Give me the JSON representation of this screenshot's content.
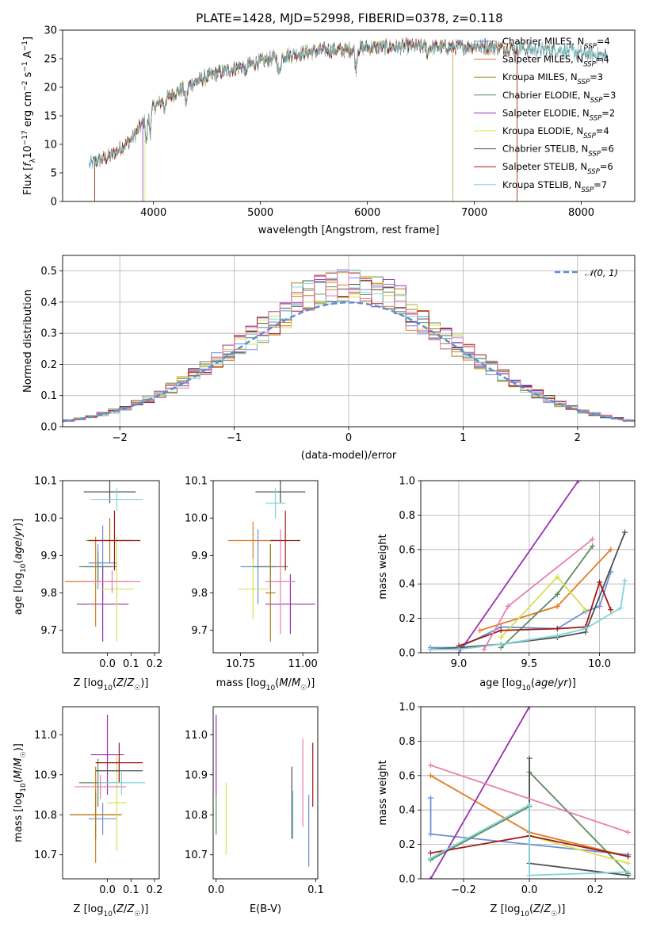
{
  "figure": {
    "title": "PLATE=1428, MJD=52998, FIBERID=0378, z=0.118",
    "colors": [
      "#6b8ed6",
      "#e07b20",
      "#b07c20",
      "#5c8a5c",
      "#9a30b0",
      "#d8e050",
      "#505050",
      "#a01818",
      "#80d4d8",
      "#e87fb0"
    ]
  },
  "chart_data": [
    {
      "id": "spectrum",
      "type": "line",
      "title": "PLATE=1428, MJD=52998, FIBERID=0378, z=0.118",
      "xlabel": "wavelength [Angstrom, rest frame]",
      "ylabel": "Flux [fλ10⁻¹⁷ erg cm⁻² s⁻¹ A⁻¹]",
      "xlim": [
        3150,
        8500
      ],
      "ylim": [
        0,
        30
      ],
      "xticks": [
        4000,
        5000,
        6000,
        7000,
        8000
      ],
      "yticks": [
        0,
        5,
        10,
        15,
        20,
        25,
        30
      ],
      "legend_position": "upper-right",
      "continuum": {
        "x": [
          3400,
          3600,
          3800,
          4000,
          4200,
          4400,
          4600,
          4800,
          5000,
          5200,
          5400,
          5600,
          5800,
          6000,
          6200,
          6400,
          6600,
          6800,
          7000,
          7200,
          7400,
          7600,
          7800,
          8000,
          8200
        ],
        "y": [
          6.5,
          8.0,
          11.0,
          16.5,
          19.0,
          21.0,
          22.5,
          23.5,
          24.5,
          25.5,
          26.0,
          26.5,
          26.5,
          27.0,
          27.0,
          27.2,
          27.0,
          27.0,
          27.2,
          27.0,
          26.8,
          26.5,
          26.5,
          26.0,
          25.5
        ]
      },
      "series": [
        {
          "name": "Chabrier MILES, N_SSP=4",
          "color": "#6b8ed6",
          "marker": "+",
          "range": [
            3400,
            7400
          ]
        },
        {
          "name": "Salpeter MILES, N_SSP=4",
          "color": "#e07b20",
          "range": [
            3450,
            7400
          ]
        },
        {
          "name": "Kroupa MILES, N_SSP=3",
          "color": "#b07c20",
          "range": [
            3450,
            7400
          ]
        },
        {
          "name": "Chabrier ELODIE, N_SSP=3",
          "color": "#5c8a5c",
          "range": [
            3900,
            6800
          ]
        },
        {
          "name": "Salpeter ELODIE, N_SSP=2",
          "color": "#9a30b0",
          "range": [
            3900,
            6800
          ]
        },
        {
          "name": "Kroupa ELODIE, N_SSP=4",
          "color": "#d8e050",
          "range": [
            3920,
            6800
          ]
        },
        {
          "name": "Chabrier STELIB, N_SSP=6",
          "color": "#505050",
          "range": [
            3400,
            8250
          ]
        },
        {
          "name": "Salpeter STELIB, N_SSP=6",
          "color": "#a01818",
          "range": [
            3450,
            7400
          ]
        },
        {
          "name": "Kroupa STELIB, N_SSP=7",
          "color": "#80d4d8",
          "range": [
            3400,
            8250
          ]
        }
      ],
      "legend_labels": [
        {
          "prefix": "Chabrier MILES, N",
          "sub": "SSP",
          "suffix": "=4"
        },
        {
          "prefix": "Salpeter MILES, N",
          "sub": "SSP",
          "suffix": "=4"
        },
        {
          "prefix": "Kroupa MILES, N",
          "sub": "SSP",
          "suffix": "=3"
        },
        {
          "prefix": "Chabrier ELODIE, N",
          "sub": "SSP",
          "suffix": "=3"
        },
        {
          "prefix": "Salpeter ELODIE, N",
          "sub": "SSP",
          "suffix": "=2"
        },
        {
          "prefix": "Kroupa ELODIE, N",
          "sub": "SSP",
          "suffix": "=4"
        },
        {
          "prefix": "Chabrier STELIB, N",
          "sub": "SSP",
          "suffix": "=6"
        },
        {
          "prefix": "Salpeter STELIB, N",
          "sub": "SSP",
          "suffix": "=6"
        },
        {
          "prefix": "Kroupa STELIB, N",
          "sub": "SSP",
          "suffix": "=7"
        }
      ]
    },
    {
      "id": "residuals",
      "type": "histogram",
      "xlabel": "(data-model)/error",
      "ylabel": "Normed distribution",
      "xlim": [
        -2.5,
        2.5
      ],
      "ylim": [
        0,
        0.55
      ],
      "xticks": [
        -2,
        -1,
        0,
        1,
        2
      ],
      "yticks": [
        0.0,
        0.1,
        0.2,
        0.3,
        0.4,
        0.5
      ],
      "bin_width": 0.1,
      "grid": true,
      "legend": "𝒩(0, 1)",
      "legend_position": "upper-right",
      "reference_curve": "standard normal N(0,1)"
    },
    {
      "id": "age-vs-Z",
      "type": "errorbar",
      "xlabel": "Z [log10(Z/Z☉)]",
      "ylabel": "age  [log10(age/yr)]",
      "xlim": [
        -0.19,
        0.22
      ],
      "ylim": [
        9.64,
        10.1
      ],
      "xticks": [
        0.0,
        0.1,
        0.2
      ],
      "yticks": [
        9.7,
        9.8,
        9.9,
        10.0,
        10.1
      ],
      "points": [
        {
          "x": -0.02,
          "y": 9.88,
          "xerr": 0.06,
          "yerr": 0.1,
          "color": "#6b8ed6"
        },
        {
          "x": -0.04,
          "y": 9.87,
          "xerr": 0.06,
          "yerr": 0.06,
          "color": "#6b8ed6"
        },
        {
          "x": -0.05,
          "y": 9.83,
          "xerr": 0.13,
          "yerr": 0.12,
          "color": "#e07b20"
        },
        {
          "x": 0.01,
          "y": 9.94,
          "xerr": 0.1,
          "yerr": 0.06,
          "color": "#b07c20"
        },
        {
          "x": -0.04,
          "y": 9.87,
          "xerr": 0.08,
          "yerr": 0.04,
          "color": "#5c8a5c"
        },
        {
          "x": -0.02,
          "y": 9.77,
          "xerr": 0.11,
          "yerr": 0.1,
          "color": "#9a30b0"
        },
        {
          "x": 0.04,
          "y": 9.81,
          "xerr": 0.07,
          "yerr": 0.14,
          "color": "#d8e050"
        },
        {
          "x": 0.01,
          "y": 10.07,
          "xerr": 0.11,
          "yerr": 0.03,
          "color": "#505050"
        },
        {
          "x": 0.03,
          "y": 9.94,
          "xerr": 0.11,
          "yerr": 0.08,
          "color": "#a01818"
        },
        {
          "x": 0.04,
          "y": 10.05,
          "xerr": 0.11,
          "yerr": 0.03,
          "color": "#80d4d8"
        },
        {
          "x": 0.02,
          "y": 9.83,
          "xerr": 0.12,
          "yerr": 0.03,
          "color": "#e87fb0"
        }
      ]
    },
    {
      "id": "age-vs-mass",
      "type": "errorbar",
      "xlabel": "mass [log10(M/M☉)]",
      "ylabel": "",
      "xlim": [
        10.64,
        11.06
      ],
      "ylim": [
        9.64,
        10.1
      ],
      "xticks": [
        10.75,
        11.0
      ],
      "yticks": [
        9.7,
        9.8,
        9.9,
        10.0,
        10.1
      ],
      "points": [
        {
          "x": 10.8,
          "y": 9.94,
          "xerr": 0.1,
          "yerr": 0.05,
          "color": "#e07b20"
        },
        {
          "x": 10.82,
          "y": 9.87,
          "xerr": 0.07,
          "yerr": 0.1,
          "color": "#6b8ed6"
        },
        {
          "x": 10.8,
          "y": 9.81,
          "xerr": 0.06,
          "yerr": 0.08,
          "color": "#d8e050"
        },
        {
          "x": 10.87,
          "y": 9.87,
          "xerr": 0.07,
          "yerr": 0.06,
          "color": "#5c8a5c"
        },
        {
          "x": 10.91,
          "y": 10.07,
          "xerr": 0.1,
          "yerr": 0.03,
          "color": "#505050"
        },
        {
          "x": 10.89,
          "y": 10.04,
          "xerr": 0.04,
          "yerr": 0.04,
          "color": "#80d4d8"
        },
        {
          "x": 10.95,
          "y": 9.77,
          "xerr": 0.1,
          "yerr": 0.08,
          "color": "#9a30b0"
        },
        {
          "x": 10.91,
          "y": 9.83,
          "xerr": 0.06,
          "yerr": 0.14,
          "color": "#e87fb0"
        },
        {
          "x": 10.93,
          "y": 9.94,
          "xerr": 0.06,
          "yerr": 0.08,
          "color": "#a01818"
        },
        {
          "x": 10.87,
          "y": 9.8,
          "xerr": 0.02,
          "yerr": 0.13,
          "color": "#b07c20"
        }
      ]
    },
    {
      "id": "weight-vs-age",
      "type": "line",
      "xlabel": "age  [log10(age/yr)]",
      "ylabel": "mass weight",
      "xlim": [
        8.73,
        10.25
      ],
      "ylim": [
        0,
        1
      ],
      "xticks": [
        9.0,
        9.5,
        10.0
      ],
      "yticks": [
        0.0,
        0.2,
        0.4,
        0.6,
        0.8,
        1.0
      ],
      "grid": true,
      "series": [
        {
          "color": "#6b8ed6",
          "x": [
            8.8,
            9.0,
            9.3,
            9.7,
            9.9,
            10.0,
            10.08
          ],
          "y": [
            0.03,
            0.03,
            0.15,
            0.14,
            0.24,
            0.27,
            0.47
          ]
        },
        {
          "color": "#e07b20",
          "x": [
            9.15,
            9.7,
            10.08
          ],
          "y": [
            0.13,
            0.27,
            0.6
          ]
        },
        {
          "color": "#5c8a5c",
          "x": [
            9.3,
            9.7,
            9.95
          ],
          "y": [
            0.03,
            0.34,
            0.62
          ]
        },
        {
          "color": "#9a30b0",
          "x": [
            9.0,
            9.85
          ],
          "y": [
            0.0,
            1.0
          ]
        },
        {
          "color": "#d8e050",
          "x": [
            9.3,
            9.7,
            9.9
          ],
          "y": [
            0.09,
            0.44,
            0.25
          ]
        },
        {
          "color": "#505050",
          "x": [
            8.8,
            9.0,
            9.3,
            9.7,
            9.9,
            10.18
          ],
          "y": [
            0.02,
            0.03,
            0.05,
            0.09,
            0.12,
            0.7
          ]
        },
        {
          "color": "#a01818",
          "x": [
            9.0,
            9.3,
            9.7,
            9.9,
            10.0,
            10.08
          ],
          "y": [
            0.04,
            0.13,
            0.14,
            0.15,
            0.41,
            0.25
          ]
        },
        {
          "color": "#80d4d8",
          "x": [
            8.8,
            9.0,
            9.3,
            9.7,
            9.9,
            10.15,
            10.18
          ],
          "y": [
            0.02,
            0.02,
            0.05,
            0.1,
            0.14,
            0.26,
            0.42
          ]
        },
        {
          "color": "#e87fb0",
          "x": [
            9.18,
            9.35,
            9.95
          ],
          "y": [
            0.02,
            0.27,
            0.66
          ]
        }
      ]
    },
    {
      "id": "mass-vs-Z",
      "type": "errorbar",
      "xlabel": "Z [log10(Z/Z☉)]",
      "ylabel": "mass [log10(M/M☉)]",
      "xlim": [
        -0.19,
        0.22
      ],
      "ylim": [
        10.64,
        11.07
      ],
      "xticks": [
        0.0,
        0.1,
        0.2
      ],
      "yticks": [
        10.7,
        10.8,
        10.9,
        11.0
      ],
      "points": [
        {
          "x": -0.02,
          "y": 10.79,
          "xerr": 0.06,
          "yerr": 0.04,
          "color": "#6b8ed6"
        },
        {
          "x": -0.05,
          "y": 10.8,
          "xerr": 0.11,
          "yerr": 0.12,
          "color": "#e07b20"
        },
        {
          "x": -0.05,
          "y": 10.8,
          "xerr": 0.11,
          "yerr": 0.06,
          "color": "#b07c20"
        },
        {
          "x": -0.04,
          "y": 10.88,
          "xerr": 0.08,
          "yerr": 0.06,
          "color": "#5c8a5c"
        },
        {
          "x": 0.0,
          "y": 10.95,
          "xerr": 0.07,
          "yerr": 0.1,
          "color": "#9a30b0"
        },
        {
          "x": 0.04,
          "y": 10.83,
          "xerr": 0.04,
          "yerr": 0.12,
          "color": "#d8e050"
        },
        {
          "x": 0.05,
          "y": 10.91,
          "xerr": 0.1,
          "yerr": 0.03,
          "color": "#505050"
        },
        {
          "x": 0.05,
          "y": 10.93,
          "xerr": 0.1,
          "yerr": 0.05,
          "color": "#a01818"
        },
        {
          "x": 0.06,
          "y": 10.88,
          "xerr": 0.1,
          "yerr": 0.03,
          "color": "#80d4d8"
        },
        {
          "x": -0.03,
          "y": 10.87,
          "xerr": 0.11,
          "yerr": 0.03,
          "color": "#e87fb0"
        }
      ]
    },
    {
      "id": "mass-vs-ebv",
      "type": "errorbar",
      "xlabel": "E(B-V)",
      "ylabel": "",
      "xlim": [
        -0.003,
        0.102
      ],
      "ylim": [
        10.64,
        11.07
      ],
      "xticks": [
        0.0,
        0.1
      ],
      "yticks": [
        10.7,
        10.8,
        10.9,
        11.0
      ],
      "points": [
        {
          "x": 0.0,
          "y": 10.95,
          "yerr": 0.1,
          "color": "#9a30b0"
        },
        {
          "x": 0.0,
          "y": 10.8,
          "yerr": 0.05,
          "color": "#5c8a5c"
        },
        {
          "x": 0.01,
          "y": 10.79,
          "yerr": 0.09,
          "color": "#d8e050"
        },
        {
          "x": 0.076,
          "y": 10.83,
          "yerr": 0.09,
          "color": "#505050"
        },
        {
          "x": 0.077,
          "y": 10.8,
          "yerr": 0.06,
          "color": "#80d4d8"
        },
        {
          "x": 0.087,
          "y": 10.88,
          "yerr": 0.11,
          "color": "#e87fb0"
        },
        {
          "x": 0.093,
          "y": 10.76,
          "yerr": 0.09,
          "color": "#6b8ed6"
        },
        {
          "x": 0.097,
          "y": 10.9,
          "yerr": 0.08,
          "color": "#a01818"
        }
      ]
    },
    {
      "id": "weight-vs-Z",
      "type": "line",
      "xlabel": "Z [log10(Z/Z☉)]",
      "ylabel": "mass weight",
      "xlim": [
        -0.33,
        0.32
      ],
      "ylim": [
        0,
        1
      ],
      "xticks": [
        -0.2,
        0.0,
        0.2
      ],
      "yticks": [
        0.0,
        0.2,
        0.4,
        0.6,
        0.8,
        1.0
      ],
      "grid": true,
      "series": [
        {
          "color": "#6b8ed6",
          "x": [
            -0.3,
            -0.3,
            0.3
          ],
          "y": [
            0.47,
            0.26,
            0.14
          ]
        },
        {
          "color": "#e07b20",
          "x": [
            -0.3,
            0.0,
            0.3
          ],
          "y": [
            0.6,
            0.27,
            0.13
          ]
        },
        {
          "color": "#5c8a5c",
          "x": [
            -0.3,
            0.0,
            0.0,
            0.3
          ],
          "y": [
            0.11,
            0.42,
            0.62,
            0.03
          ]
        },
        {
          "color": "#9a30b0",
          "x": [
            -0.3,
            0.0
          ],
          "y": [
            0.0,
            1.0
          ]
        },
        {
          "color": "#d8e050",
          "x": [
            0.0,
            0.3
          ],
          "y": [
            0.25,
            0.09
          ]
        },
        {
          "color": "#505050",
          "x": [
            0.0,
            0.0,
            0.3
          ],
          "y": [
            0.7,
            0.09,
            0.02
          ]
        },
        {
          "color": "#a01818",
          "x": [
            -0.3,
            0.0,
            0.3
          ],
          "y": [
            0.15,
            0.25,
            0.13
          ]
        },
        {
          "color": "#80d4d8",
          "x": [
            -0.3,
            0.0,
            0.0,
            0.3
          ],
          "y": [
            0.12,
            0.43,
            0.02,
            0.04
          ]
        },
        {
          "color": "#e87fb0",
          "x": [
            -0.3,
            0.3
          ],
          "y": [
            0.66,
            0.27
          ]
        }
      ]
    }
  ]
}
